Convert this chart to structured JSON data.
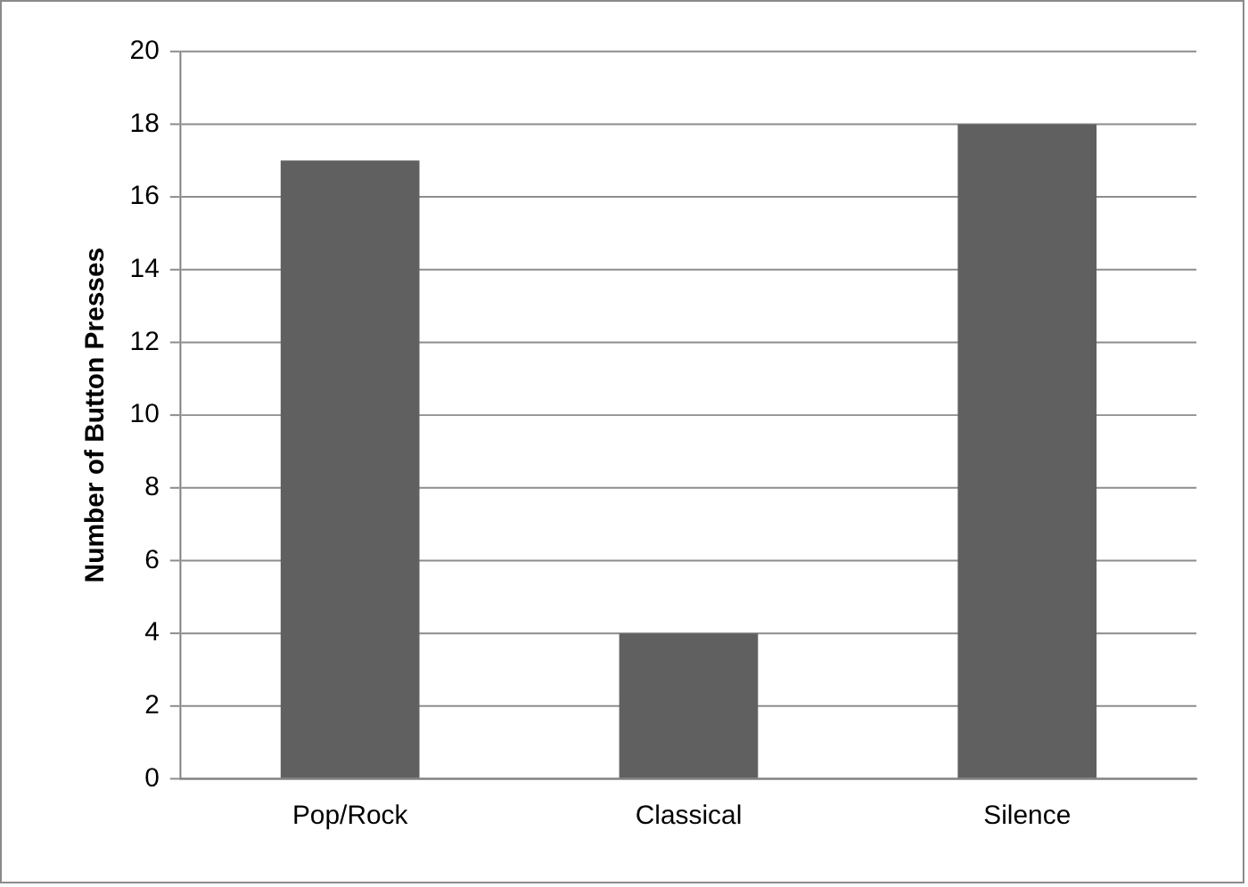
{
  "chart_data": {
    "type": "bar",
    "ylabel": "Number of Button Presses",
    "categories": [
      "Pop/Rock",
      "Classical",
      "Silence"
    ],
    "values": [
      17,
      4,
      18
    ],
    "color": "#606060",
    "ylim": [
      0,
      20
    ],
    "yticks": [
      0,
      2,
      4,
      6,
      8,
      10,
      12,
      14,
      16,
      18,
      20
    ],
    "grid": "y",
    "legend": false
  }
}
